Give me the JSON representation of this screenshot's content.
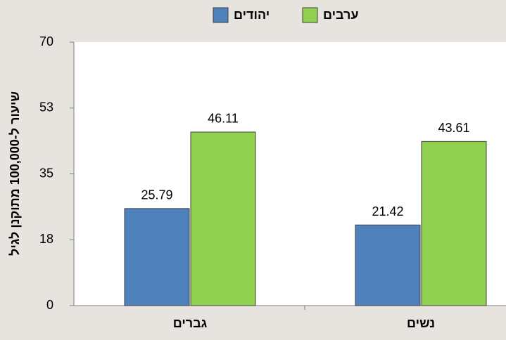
{
  "chart_data": {
    "type": "bar",
    "y_label": "שיעור ל-100,000 מתוקנן לגיל",
    "categories": [
      "גברים",
      "נשים"
    ],
    "series": [
      {
        "name": "יהודים",
        "color": "#4f81bd",
        "values": [
          25.79,
          21.42
        ]
      },
      {
        "name": "ערבים",
        "color": "#92d050",
        "values": [
          46.11,
          43.61
        ]
      }
    ],
    "ylim": [
      0,
      70
    ],
    "yticks": [
      0,
      {
        "value": 17.5,
        "label": "18"
      },
      35,
      {
        "value": 52.5,
        "label": "53"
      },
      70
    ],
    "grid": false,
    "legend": "top"
  }
}
